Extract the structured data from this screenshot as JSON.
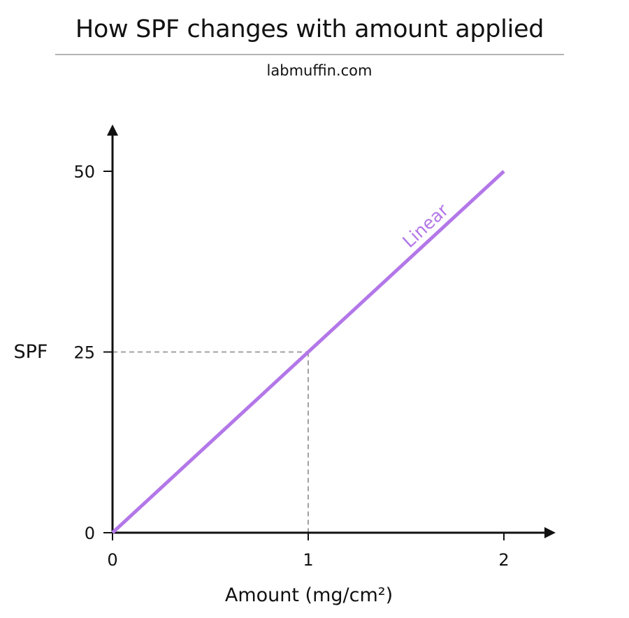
{
  "header": {
    "title": "How SPF changes with amount applied",
    "subtitle": "labmuffin.com"
  },
  "chart_data": {
    "type": "line",
    "title": "How SPF changes with amount applied",
    "subtitle": "labmuffin.com",
    "xlabel": "Amount (mg/cm²)",
    "ylabel": "SPF",
    "xlim": [
      0,
      2.25
    ],
    "ylim": [
      0,
      55
    ],
    "x_ticks": [
      0,
      1,
      2
    ],
    "y_ticks": [
      0,
      25,
      50
    ],
    "grid": false,
    "series": [
      {
        "name": "Linear",
        "color": "#b377e8",
        "x": [
          0,
          2
        ],
        "y": [
          0,
          50
        ]
      }
    ],
    "reference_lines": [
      {
        "x": 1,
        "y": 25,
        "style": "dashed",
        "color": "#a0a0a0"
      }
    ]
  }
}
